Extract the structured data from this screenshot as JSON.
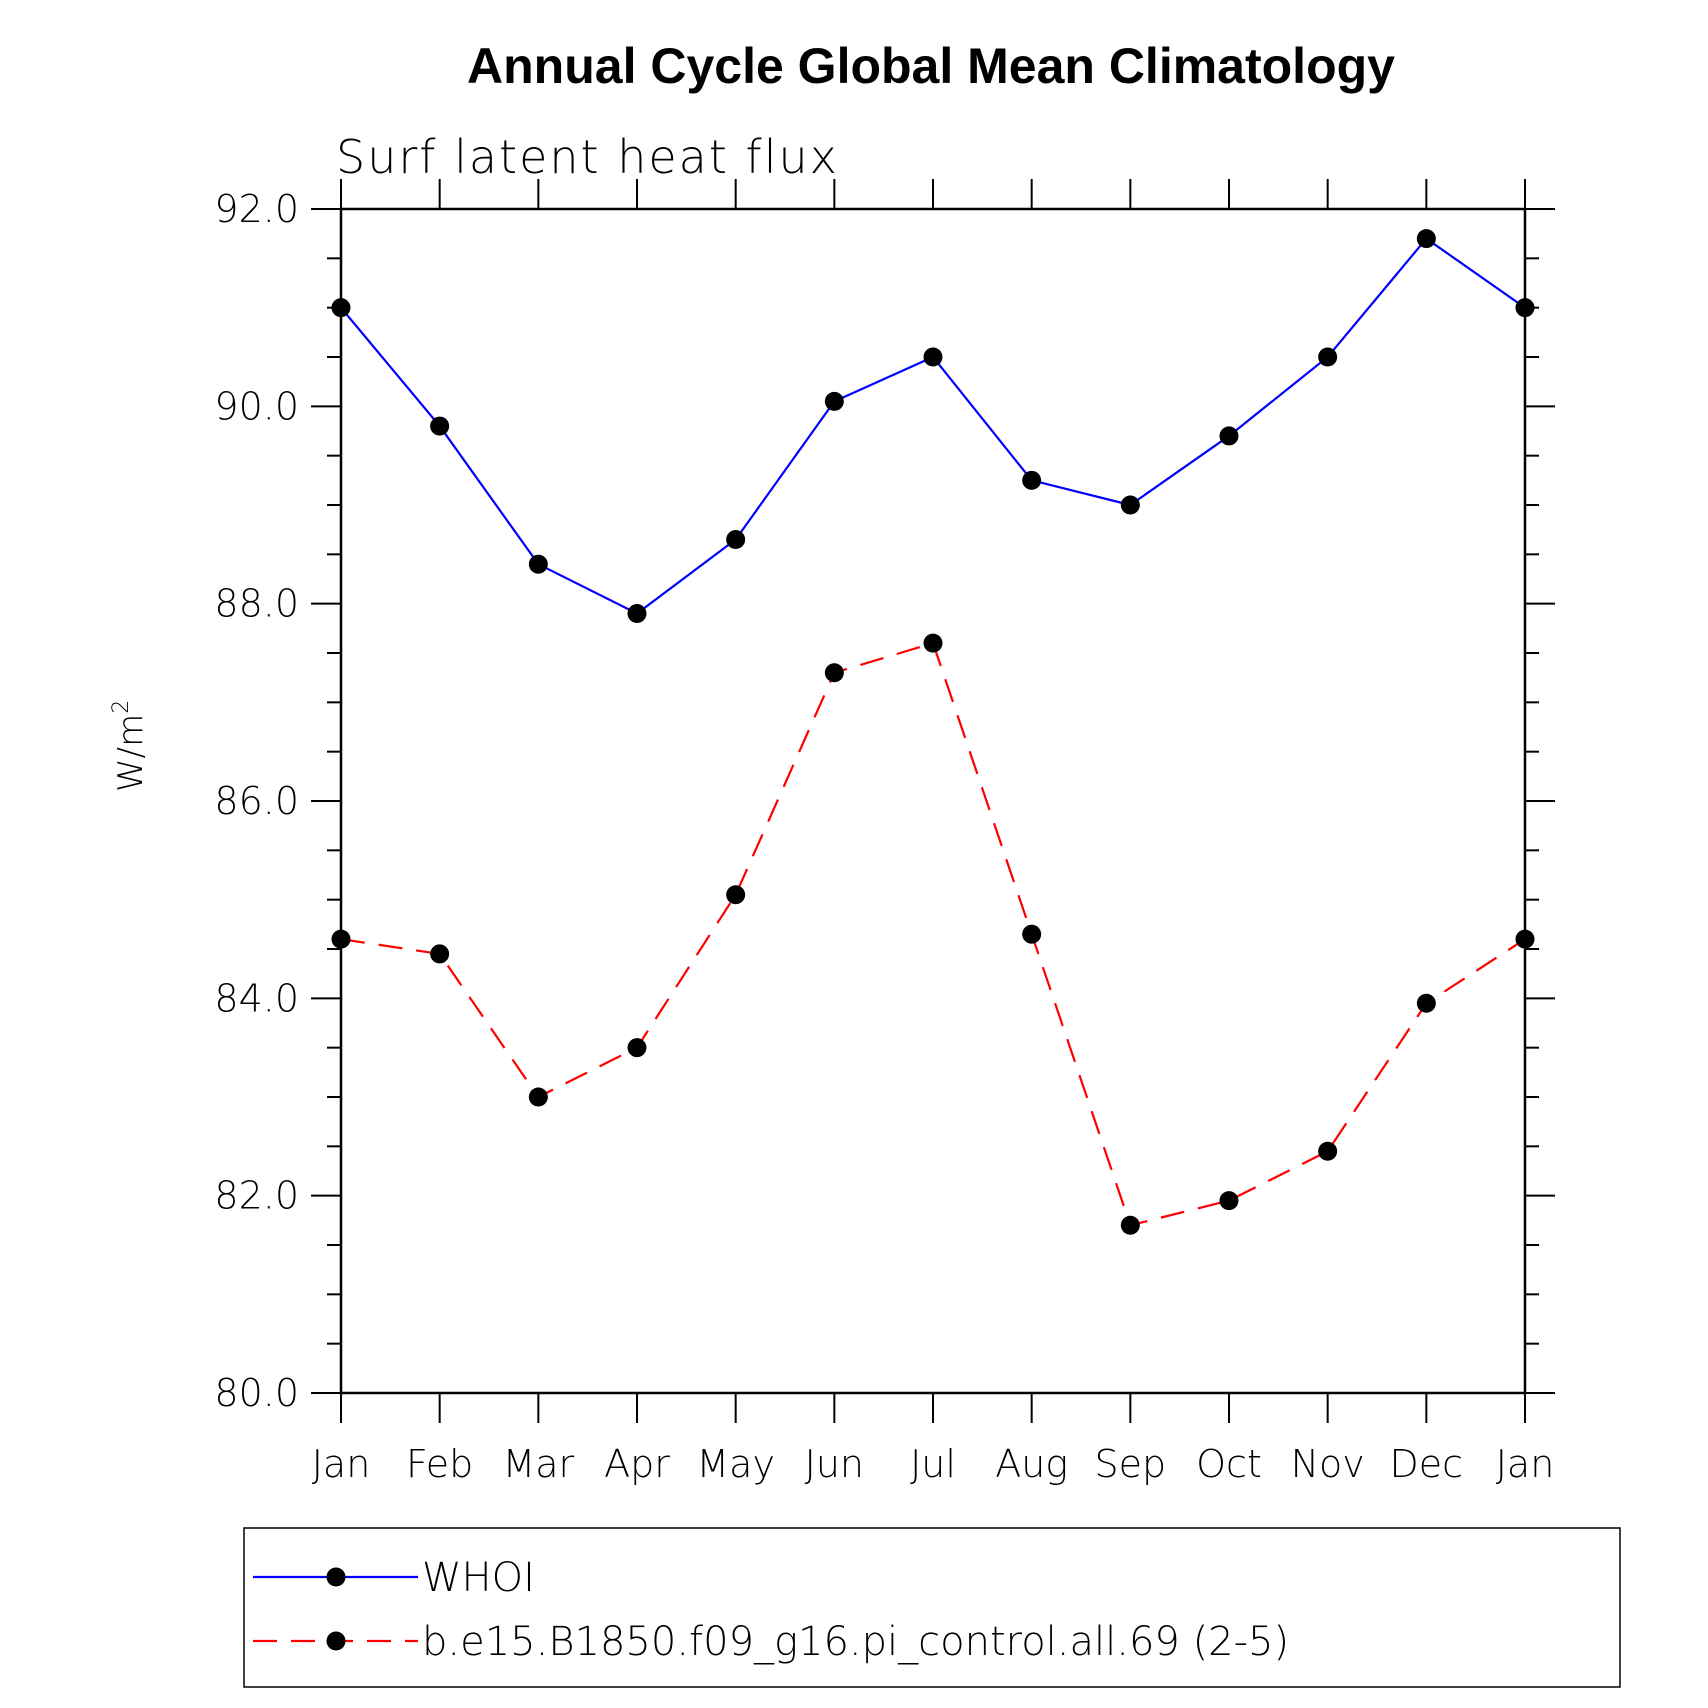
{
  "chart_data": {
    "type": "line",
    "title": "Annual Cycle Global Mean Climatology",
    "subtitle": "Surf latent heat flux",
    "ylabel": "W/m",
    "ylabel_superscript": "2",
    "xlabel": "",
    "categories": [
      "Jan",
      "Feb",
      "Mar",
      "Apr",
      "May",
      "Jun",
      "Jul",
      "Aug",
      "Sep",
      "Oct",
      "Nov",
      "Dec",
      "Jan"
    ],
    "ylim": [
      80.0,
      92.0
    ],
    "yticks": [
      "80.0",
      "82.0",
      "84.0",
      "86.0",
      "88.0",
      "90.0",
      "92.0"
    ],
    "grid": false,
    "legend_position": "bottom",
    "series": [
      {
        "name": "WHOI",
        "values": [
          91.0,
          89.8,
          88.4,
          87.9,
          88.65,
          90.05,
          90.5,
          89.25,
          89.0,
          89.7,
          90.5,
          91.7,
          91.0
        ],
        "color": "#0000ff",
        "dash": "solid"
      },
      {
        "name": "b.e15.B1850.f09_g16.pi_control.all.69 (2-5)",
        "values": [
          84.6,
          84.45,
          83.0,
          83.5,
          85.05,
          87.3,
          87.6,
          84.65,
          81.7,
          81.95,
          82.45,
          83.95,
          84.6
        ],
        "color": "#ff0000",
        "dash": "dashed"
      }
    ]
  }
}
